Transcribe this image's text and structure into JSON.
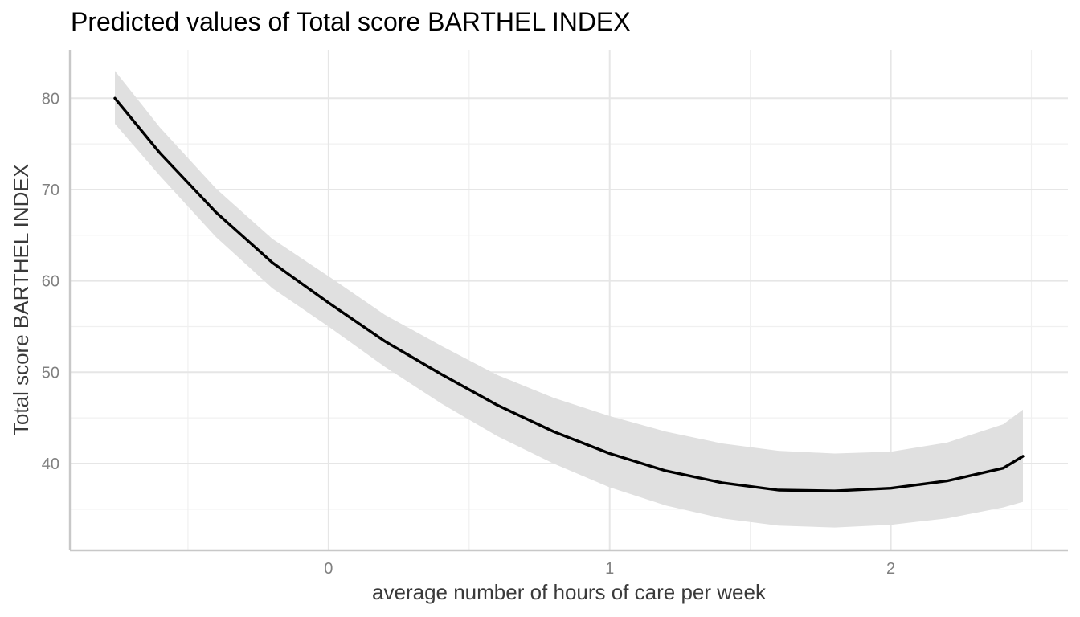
{
  "chart_data": {
    "type": "line",
    "title": "Predicted values of Total score BARTHEL INDEX",
    "xlabel": "average number of hours of care per week",
    "ylabel": "Total score BARTHEL INDEX",
    "xlim": [
      -0.92,
      2.63
    ],
    "ylim": [
      30.5,
      85.3
    ],
    "x_ticks": [
      0,
      1,
      2
    ],
    "x_tick_labels": [
      "0",
      "1",
      "2"
    ],
    "x_minor_ticks": [
      -0.5,
      0.5,
      1.5,
      2.5
    ],
    "y_ticks": [
      40,
      50,
      60,
      70,
      80
    ],
    "y_tick_labels": [
      "40",
      "50",
      "60",
      "70",
      "80"
    ],
    "y_minor_ticks": [
      35,
      45,
      55,
      65,
      75
    ],
    "grid": true,
    "legend": "none",
    "colors": {
      "line": "#000000",
      "ribbon": "#e0e0e0"
    },
    "series": [
      {
        "x": [
          -0.76,
          -0.6,
          -0.4,
          -0.2,
          0.0,
          0.2,
          0.4,
          0.6,
          0.8,
          1.0,
          1.2,
          1.4,
          1.6,
          1.8,
          2.0,
          2.2,
          2.4,
          2.47
        ],
        "values": [
          80.0,
          74.0,
          67.5,
          62.0,
          57.6,
          53.4,
          49.8,
          46.4,
          43.5,
          41.1,
          39.2,
          37.9,
          37.1,
          37.0,
          37.3,
          38.1,
          39.5,
          40.8
        ],
        "ci_low": [
          77.2,
          71.5,
          64.8,
          59.2,
          55.0,
          50.6,
          46.6,
          43.0,
          40.0,
          37.4,
          35.4,
          34.0,
          33.2,
          33.0,
          33.3,
          34.0,
          35.2,
          35.8
        ],
        "ci_high": [
          83.0,
          76.8,
          70.1,
          64.6,
          60.5,
          56.3,
          52.9,
          49.7,
          47.2,
          45.2,
          43.5,
          42.2,
          41.4,
          41.1,
          41.3,
          42.3,
          44.3,
          45.9
        ]
      }
    ]
  }
}
